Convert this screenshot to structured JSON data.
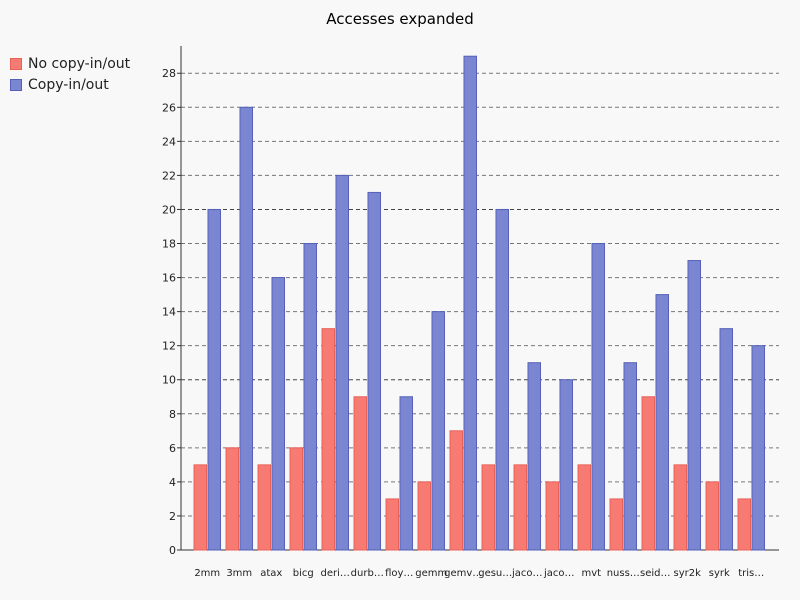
{
  "chart_data": {
    "type": "bar",
    "title": "Accesses expanded",
    "xlabel": "",
    "ylabel": "",
    "ylim": [
      0,
      29.6
    ],
    "yticks": [
      0,
      2,
      4,
      6,
      8,
      10,
      12,
      14,
      16,
      18,
      20,
      22,
      24,
      26,
      28
    ],
    "grid": true,
    "legend_position": "top-left",
    "categories": [
      "2mm",
      "3mm",
      "atax",
      "bicg",
      "deri…",
      "durb…",
      "floy…",
      "gemm",
      "gemv…",
      "gesu…",
      "jaco…",
      "jaco…",
      "mvt",
      "nuss…",
      "seid…",
      "syr2k",
      "syrk",
      "tris…"
    ],
    "series": [
      {
        "name": "No copy-in/out",
        "color": "#f77b72",
        "stroke": "#e8625a",
        "values": [
          5,
          6,
          5,
          6,
          13,
          9,
          3,
          4,
          7,
          5,
          5,
          4,
          5,
          3,
          9,
          5,
          4,
          3
        ]
      },
      {
        "name": "Copy-in/out",
        "color": "#7a86d1",
        "stroke": "#5561b8",
        "values": [
          20,
          26,
          16,
          18,
          22,
          21,
          9,
          14,
          29,
          20,
          11,
          10,
          18,
          11,
          15,
          17,
          13,
          12
        ]
      }
    ]
  }
}
